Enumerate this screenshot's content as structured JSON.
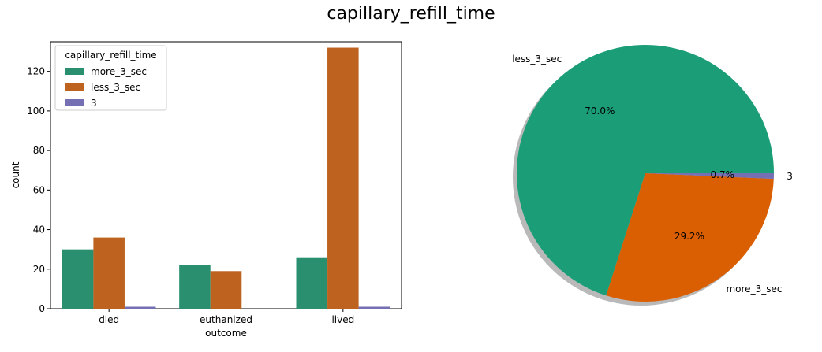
{
  "figure": {
    "suptitle": "capillary_refill_time"
  },
  "colors": {
    "more_3_sec": "#1b9e77",
    "less_3_sec": "#d95f02",
    "three": "#7570b3"
  },
  "chart_data": [
    {
      "type": "bar",
      "xlabel": "outcome",
      "ylabel": "count",
      "categories": [
        "died",
        "euthanized",
        "lived"
      ],
      "ylim": [
        0,
        135
      ],
      "yticks": [
        0,
        20,
        40,
        60,
        80,
        100,
        120
      ],
      "legend": {
        "title": "capillary_refill_time",
        "placement": "top-left"
      },
      "series": [
        {
          "name": "more_3_sec",
          "values": [
            30,
            22,
            26
          ],
          "color": "#2a8f6f"
        },
        {
          "name": "less_3_sec",
          "values": [
            36,
            19,
            132
          ],
          "color": "#bd621f"
        },
        {
          "name": "3",
          "values": [
            1,
            0,
            1
          ],
          "color": "#7570b3"
        }
      ],
      "grid": false
    },
    {
      "type": "pie",
      "labels": [
        "less_3_sec",
        "more_3_sec",
        "3"
      ],
      "values": [
        70.0,
        29.2,
        0.7
      ],
      "pct_labels": [
        "70.0%",
        "29.2%",
        "0.7%"
      ],
      "colors": [
        "#1b9e77",
        "#d95f02",
        "#7570b3"
      ],
      "shadow": true
    }
  ]
}
